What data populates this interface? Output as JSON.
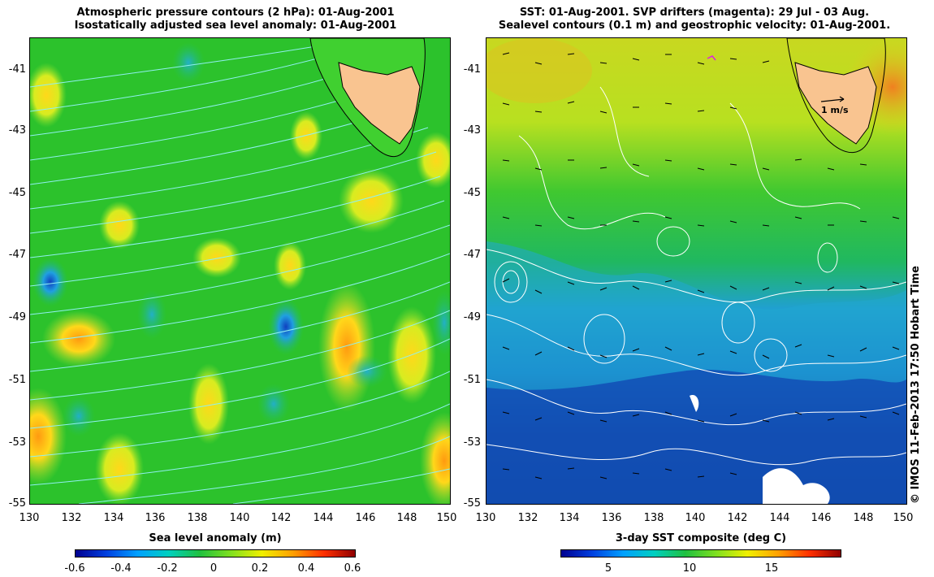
{
  "left_panel": {
    "title_line1": "Atmospheric pressure contours (2 hPa): 01-Aug-2001",
    "title_line2": "Isostatically adjusted sea level anomaly: 01-Aug-2001",
    "colorbar_label": "Sea level anomaly (m)",
    "colorbar_ticks": [
      "-0.6",
      "-0.4",
      "-0.2",
      "0",
      "0.2",
      "0.4",
      "0.6"
    ]
  },
  "right_panel": {
    "title_line1": "SST: 01-Aug-2001. SVP drifters (magenta): 29 Jul - 03 Aug.",
    "title_line2": "Sealevel contours (0.1 m) and geostrophic velocity: 01-Aug-2001.",
    "colorbar_label": "3-day SST composite (deg C)",
    "colorbar_ticks": [
      "5",
      "10",
      "15"
    ],
    "vector_scale_label": "1 m/s"
  },
  "axes": {
    "lat_ticks": [
      "-41",
      "-43",
      "-45",
      "-47",
      "-49",
      "-51",
      "-53",
      "-55"
    ],
    "lon_ticks": [
      "130",
      "132",
      "134",
      "136",
      "138",
      "140",
      "142",
      "144",
      "146",
      "148",
      "150"
    ]
  },
  "credit": "© IMOS 11-Feb-2013 17:50 Hobart Time",
  "colors": {
    "land": "#f9c490",
    "ocean_green": "#22c022",
    "sla_high": "#f0e020",
    "sla_low": "#1050c8",
    "sst_cold": "#0a1a90",
    "sst_mid": "#20b8d8",
    "contour_left": "#7fe8e8",
    "contour_right": "#ffffff"
  }
}
